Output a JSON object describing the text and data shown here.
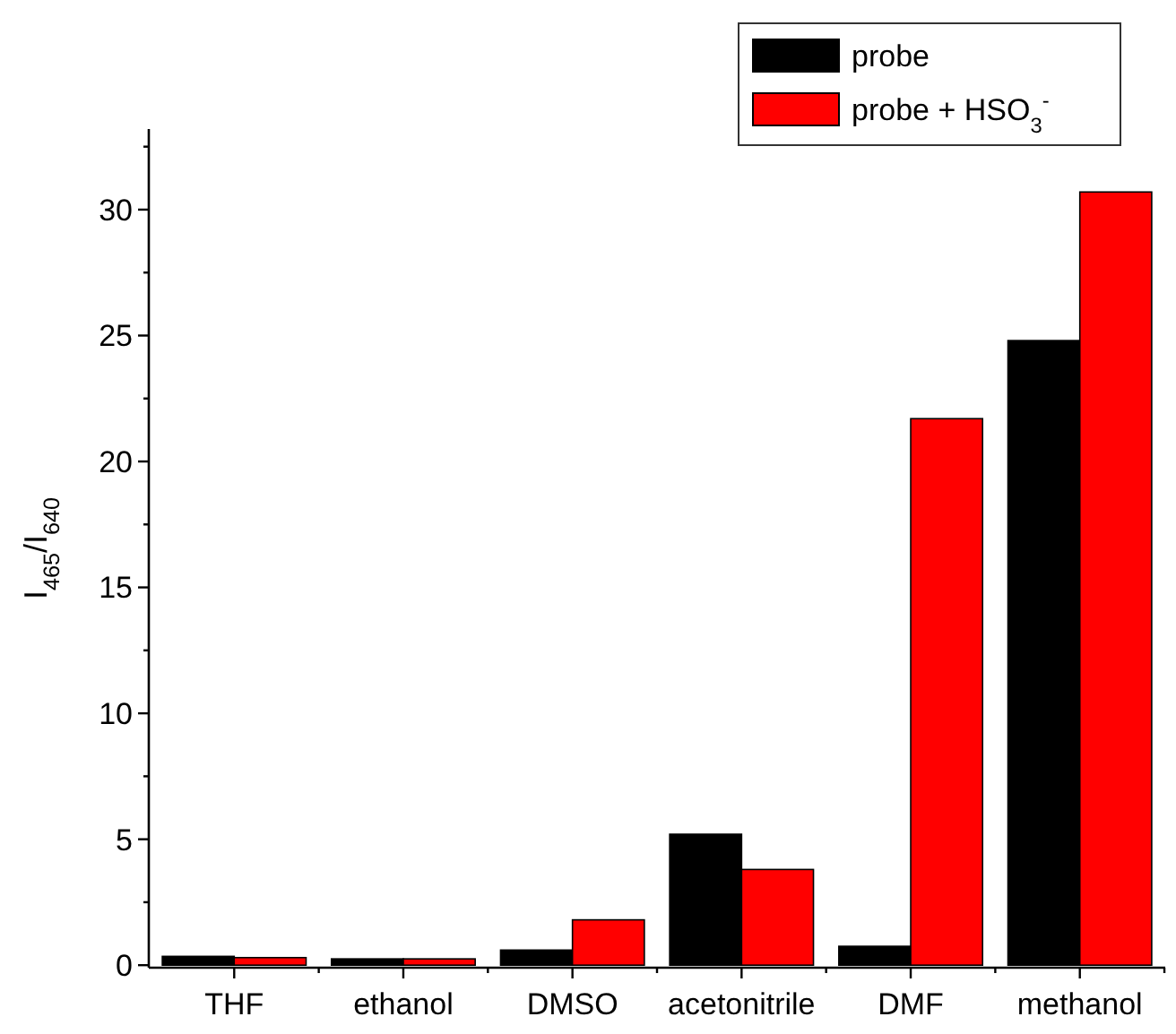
{
  "chart_data": {
    "type": "bar",
    "ylabel": "I$_{465}$/I$_{640}$",
    "categories": [
      "THF",
      "ethanol",
      "DMSO",
      "acetonitrile",
      "DMF",
      "methanol"
    ],
    "series": [
      {
        "name": "probe",
        "color": "#000000",
        "values": [
          0.35,
          0.25,
          0.6,
          5.2,
          0.75,
          24.8
        ]
      },
      {
        "name": "probe + HSO$_{3}$$^{-}$",
        "color": "#ff0000",
        "values": [
          0.3,
          0.25,
          1.8,
          3.8,
          21.7,
          30.7
        ]
      }
    ],
    "ylim": [
      -0.1,
      33.2
    ],
    "yticks": [
      0,
      {
        "value": 2.5,
        "label": null
      },
      5,
      {
        "value": 7.5,
        "label": null
      },
      10,
      {
        "value": 12.5,
        "label": null
      },
      15,
      {
        "value": 17.5,
        "label": null
      },
      20,
      {
        "value": 22.5,
        "label": null
      },
      25,
      {
        "value": 27.5,
        "label": null
      },
      30,
      {
        "value": 32.5,
        "label": null
      }
    ],
    "legend": "top right",
    "grid": false
  }
}
